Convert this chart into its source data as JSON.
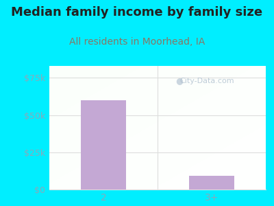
{
  "title": "Median family income by family size",
  "subtitle": "All residents in Moorhead, IA",
  "categories": [
    "2",
    "3+"
  ],
  "values": [
    60000,
    9000
  ],
  "bar_color": "#c4a8d4",
  "outer_bg_color": "#00eeff",
  "title_color": "#222222",
  "subtitle_color": "#887766",
  "yticks": [
    0,
    25000,
    50000,
    75000
  ],
  "ytick_labels": [
    "$0",
    "$25k",
    "$50k",
    "$75k"
  ],
  "ylim": [
    0,
    83000
  ],
  "watermark": "City-Data.com",
  "tick_label_color": "#88aabb",
  "grid_color": "#dddddd",
  "title_fontsize": 13,
  "subtitle_fontsize": 10
}
